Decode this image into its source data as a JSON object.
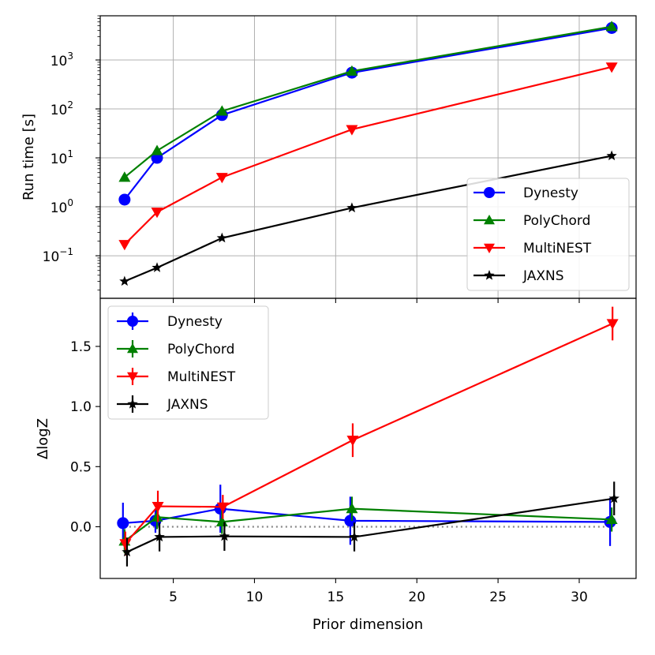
{
  "chart_data": [
    {
      "type": "line",
      "panel": "top",
      "yscale": "log",
      "ylabel": "Run time [s]",
      "xlabel": "",
      "xlim": [
        0.5,
        33.5
      ],
      "ylim": [
        0.0135,
        8000
      ],
      "grid": true,
      "legend_position": "bottom-right",
      "yticks": [
        {
          "value": 0.1,
          "base": "10",
          "exp": "−1"
        },
        {
          "value": 1,
          "base": "10",
          "exp": "0"
        },
        {
          "value": 10,
          "base": "10",
          "exp": "1"
        },
        {
          "value": 100,
          "base": "10",
          "exp": "2"
        },
        {
          "value": 1000,
          "base": "10",
          "exp": "3"
        }
      ],
      "x": [
        2,
        4,
        8,
        16,
        32
      ],
      "series": [
        {
          "name": "Dynesty",
          "color": "#0000ff",
          "marker": "circle",
          "values": [
            1.4,
            10,
            75,
            550,
            4500
          ]
        },
        {
          "name": "PolyChord",
          "color": "#008000",
          "marker": "triangle-up",
          "values": [
            4,
            14,
            90,
            590,
            4800
          ]
        },
        {
          "name": "MultiNEST",
          "color": "#ff0000",
          "marker": "triangle-down",
          "values": [
            0.17,
            0.78,
            4,
            38,
            720
          ]
        },
        {
          "name": "JAXNS",
          "color": "#000000",
          "marker": "star",
          "values": [
            0.03,
            0.057,
            0.23,
            0.95,
            11
          ]
        }
      ]
    },
    {
      "type": "line",
      "panel": "bottom",
      "yscale": "linear",
      "ylabel": "ΔlogZ",
      "xlabel": "Prior dimension",
      "xlim": [
        0.5,
        33.5
      ],
      "ylim": [
        -0.43,
        1.9
      ],
      "grid": false,
      "legend_position": "top-left",
      "xticks": [
        5,
        10,
        15,
        20,
        25,
        30
      ],
      "yticks": [
        0.0,
        0.5,
        1.0,
        1.5
      ],
      "reference_line": {
        "value": 0,
        "style": "dotted",
        "color": "#888888"
      },
      "series": [
        {
          "name": "Dynesty",
          "color": "#0000ff",
          "marker": "circle",
          "x": [
            1.9,
            3.9,
            7.9,
            15.9,
            31.9
          ],
          "values": [
            0.03,
            0.05,
            0.15,
            0.05,
            0.04
          ],
          "errors": [
            0.17,
            0.1,
            0.2,
            0.2,
            0.2
          ]
        },
        {
          "name": "PolyChord",
          "color": "#008000",
          "marker": "triangle-up",
          "x": [
            2,
            4,
            8,
            16,
            32
          ],
          "values": [
            -0.12,
            0.08,
            0.04,
            0.15,
            0.06
          ],
          "errors": [
            0.1,
            0.1,
            0.1,
            0.1,
            0.1
          ]
        },
        {
          "name": "MultiNEST",
          "color": "#ff0000",
          "marker": "triangle-down",
          "x": [
            2.05,
            4.05,
            8.05,
            16.05,
            32.05
          ],
          "values": [
            -0.14,
            0.17,
            0.165,
            0.72,
            1.69
          ],
          "errors": [
            0.1,
            0.13,
            0.1,
            0.14,
            0.14
          ]
        },
        {
          "name": "JAXNS",
          "color": "#000000",
          "marker": "star",
          "x": [
            2.15,
            4.15,
            8.15,
            16.15,
            32.15
          ],
          "values": [
            -0.21,
            -0.085,
            -0.08,
            -0.085,
            0.235
          ],
          "errors": [
            0.12,
            0.12,
            0.12,
            0.12,
            0.14
          ]
        }
      ]
    }
  ]
}
